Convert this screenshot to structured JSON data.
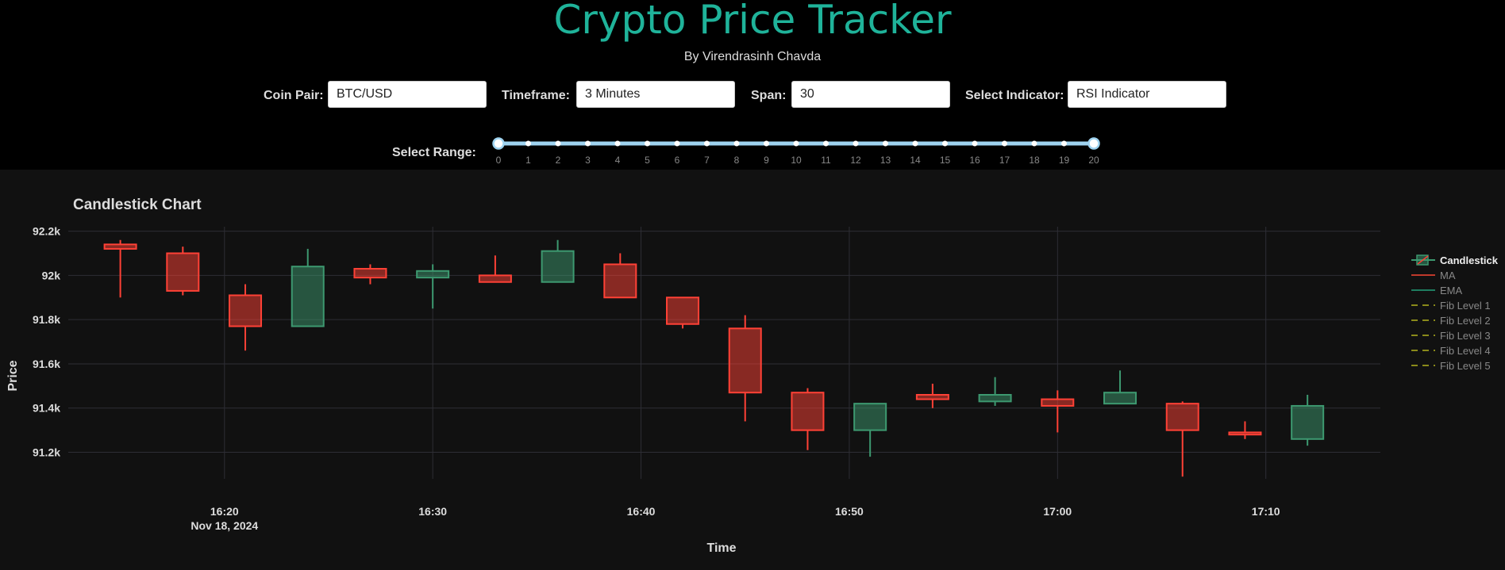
{
  "header": {
    "title": "Crypto Price Tracker",
    "subtitle": "By Virendrasinh Chavda"
  },
  "controls": {
    "coin_pair": {
      "label": "Coin Pair:",
      "value": "BTC/USD"
    },
    "timeframe": {
      "label": "Timeframe:",
      "value": "3 Minutes"
    },
    "span": {
      "label": "Span:",
      "value": "30"
    },
    "indicator": {
      "label": "Select Indicator:",
      "value": "RSI Indicator"
    }
  },
  "range_slider": {
    "label": "Select Range:",
    "min": 0,
    "max": 20,
    "selected": [
      0,
      20
    ],
    "ticks": [
      "0",
      "1",
      "2",
      "3",
      "4",
      "5",
      "6",
      "7",
      "8",
      "9",
      "10",
      "11",
      "12",
      "13",
      "14",
      "15",
      "16",
      "17",
      "18",
      "19",
      "20"
    ]
  },
  "colors": {
    "accent": "#1fb39a",
    "increasing": "#3d9970",
    "decreasing": "#ff4136"
  },
  "chart_data": {
    "type": "candlestick",
    "title": "Candlestick Chart",
    "xlabel": "Time",
    "ylabel": "Price",
    "x_ticks": [
      {
        "time": "16:20",
        "sub": "Nov 18, 2024"
      },
      {
        "time": "16:30",
        "sub": ""
      },
      {
        "time": "16:40",
        "sub": ""
      },
      {
        "time": "16:50",
        "sub": ""
      },
      {
        "time": "17:00",
        "sub": ""
      },
      {
        "time": "17:10",
        "sub": ""
      }
    ],
    "y_ticks": [
      "92.2k",
      "92k",
      "91.8k",
      "91.6k",
      "91.4k",
      "91.2k"
    ],
    "y_tick_values": [
      92200,
      92000,
      91800,
      91600,
      91400,
      91200
    ],
    "ylim": [
      91080,
      92220
    ],
    "xlim": [
      "16:12:30",
      "17:15:30"
    ],
    "candles": [
      {
        "time": "16:15",
        "open": 92140,
        "high": 92160,
        "low": 91900,
        "close": 92120
      },
      {
        "time": "16:18",
        "open": 92100,
        "high": 92130,
        "low": 91910,
        "close": 91930
      },
      {
        "time": "16:21",
        "open": 91910,
        "high": 91960,
        "low": 91660,
        "close": 91770
      },
      {
        "time": "16:24",
        "open": 91770,
        "high": 92120,
        "low": 91770,
        "close": 92040
      },
      {
        "time": "16:27",
        "open": 92030,
        "high": 92050,
        "low": 91960,
        "close": 91990
      },
      {
        "time": "16:30",
        "open": 91990,
        "high": 92050,
        "low": 91850,
        "close": 92020
      },
      {
        "time": "16:33",
        "open": 92000,
        "high": 92090,
        "low": 91970,
        "close": 91970
      },
      {
        "time": "16:36",
        "open": 91970,
        "high": 92160,
        "low": 91970,
        "close": 92110
      },
      {
        "time": "16:39",
        "open": 92050,
        "high": 92100,
        "low": 91900,
        "close": 91900
      },
      {
        "time": "16:42",
        "open": 91900,
        "high": 91900,
        "low": 91760,
        "close": 91780
      },
      {
        "time": "16:45",
        "open": 91760,
        "high": 91820,
        "low": 91340,
        "close": 91470
      },
      {
        "time": "16:48",
        "open": 91470,
        "high": 91490,
        "low": 91210,
        "close": 91300
      },
      {
        "time": "16:51",
        "open": 91300,
        "high": 91420,
        "low": 91180,
        "close": 91420
      },
      {
        "time": "16:54",
        "open": 91460,
        "high": 91510,
        "low": 91400,
        "close": 91440
      },
      {
        "time": "16:57",
        "open": 91430,
        "high": 91540,
        "low": 91410,
        "close": 91460
      },
      {
        "time": "17:00",
        "open": 91440,
        "high": 91480,
        "low": 91290,
        "close": 91410
      },
      {
        "time": "17:03",
        "open": 91420,
        "high": 91570,
        "low": 91420,
        "close": 91470
      },
      {
        "time": "17:06",
        "open": 91420,
        "high": 91430,
        "low": 91090,
        "close": 91300
      },
      {
        "time": "17:09",
        "open": 91290,
        "high": 91340,
        "low": 91260,
        "close": 91280
      },
      {
        "time": "17:12",
        "open": 91260,
        "high": 91460,
        "low": 91230,
        "close": 91410
      }
    ],
    "legend": [
      {
        "name": "Candlestick",
        "style": "candle"
      },
      {
        "name": "MA",
        "style": "line",
        "color": "#c0392b"
      },
      {
        "name": "EMA",
        "style": "line",
        "color": "#1e7d60"
      },
      {
        "name": "Fib Level 1",
        "style": "dash",
        "color": "#8a8a1a"
      },
      {
        "name": "Fib Level 2",
        "style": "dash",
        "color": "#8a8a1a"
      },
      {
        "name": "Fib Level 3",
        "style": "dash",
        "color": "#8a8a1a"
      },
      {
        "name": "Fib Level 4",
        "style": "dash",
        "color": "#8a8a1a"
      },
      {
        "name": "Fib Level 5",
        "style": "dash",
        "color": "#8a8a1a"
      }
    ],
    "legend_position": "top-right",
    "grid": true
  }
}
